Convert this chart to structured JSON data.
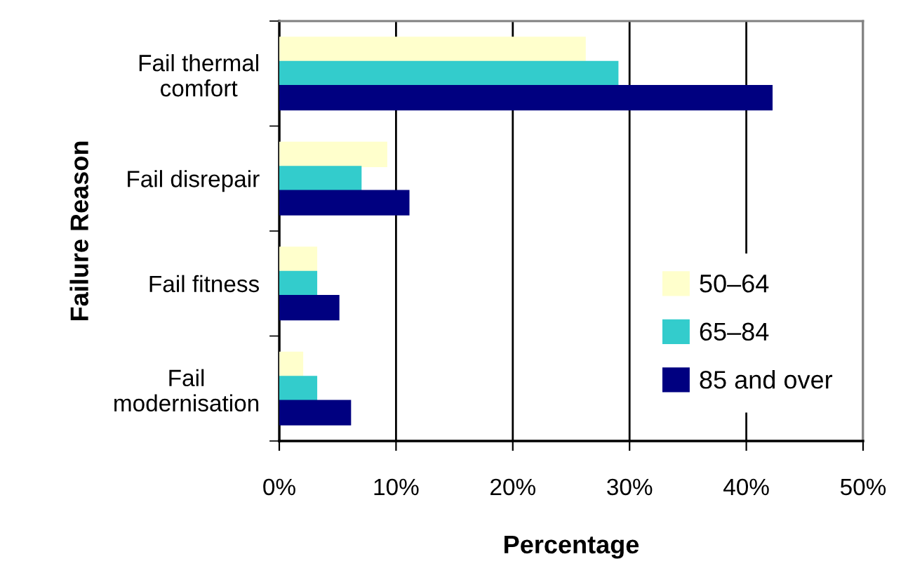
{
  "chart_data": {
    "type": "bar",
    "orientation": "horizontal",
    "xlabel": "Percentage",
    "ylabel": "Failure Reason",
    "categories": [
      "Fail thermal\ncomfort",
      "Fail disrepair",
      "Fail fitness",
      "Fail\nmodernisation"
    ],
    "series": [
      {
        "name": "50–64",
        "color": "#ffffcc",
        "values": [
          26.2,
          9.2,
          3.2,
          2.0
        ]
      },
      {
        "name": "65–84",
        "color": "#33cccc",
        "values": [
          29.0,
          7.0,
          3.2,
          3.2
        ]
      },
      {
        "name": "85 and over",
        "color": "#000080",
        "values": [
          42.2,
          11.1,
          5.1,
          6.1
        ]
      }
    ],
    "xlim": [
      0,
      50
    ],
    "xticks": [
      {
        "value": 0,
        "label": "0%"
      },
      {
        "value": 10,
        "label": "10%"
      },
      {
        "value": 20,
        "label": "20%"
      },
      {
        "value": 30,
        "label": "30%"
      },
      {
        "value": 40,
        "label": "40%"
      },
      {
        "value": 50,
        "label": "50%"
      }
    ],
    "grid": "x",
    "legend": "bottom right"
  }
}
